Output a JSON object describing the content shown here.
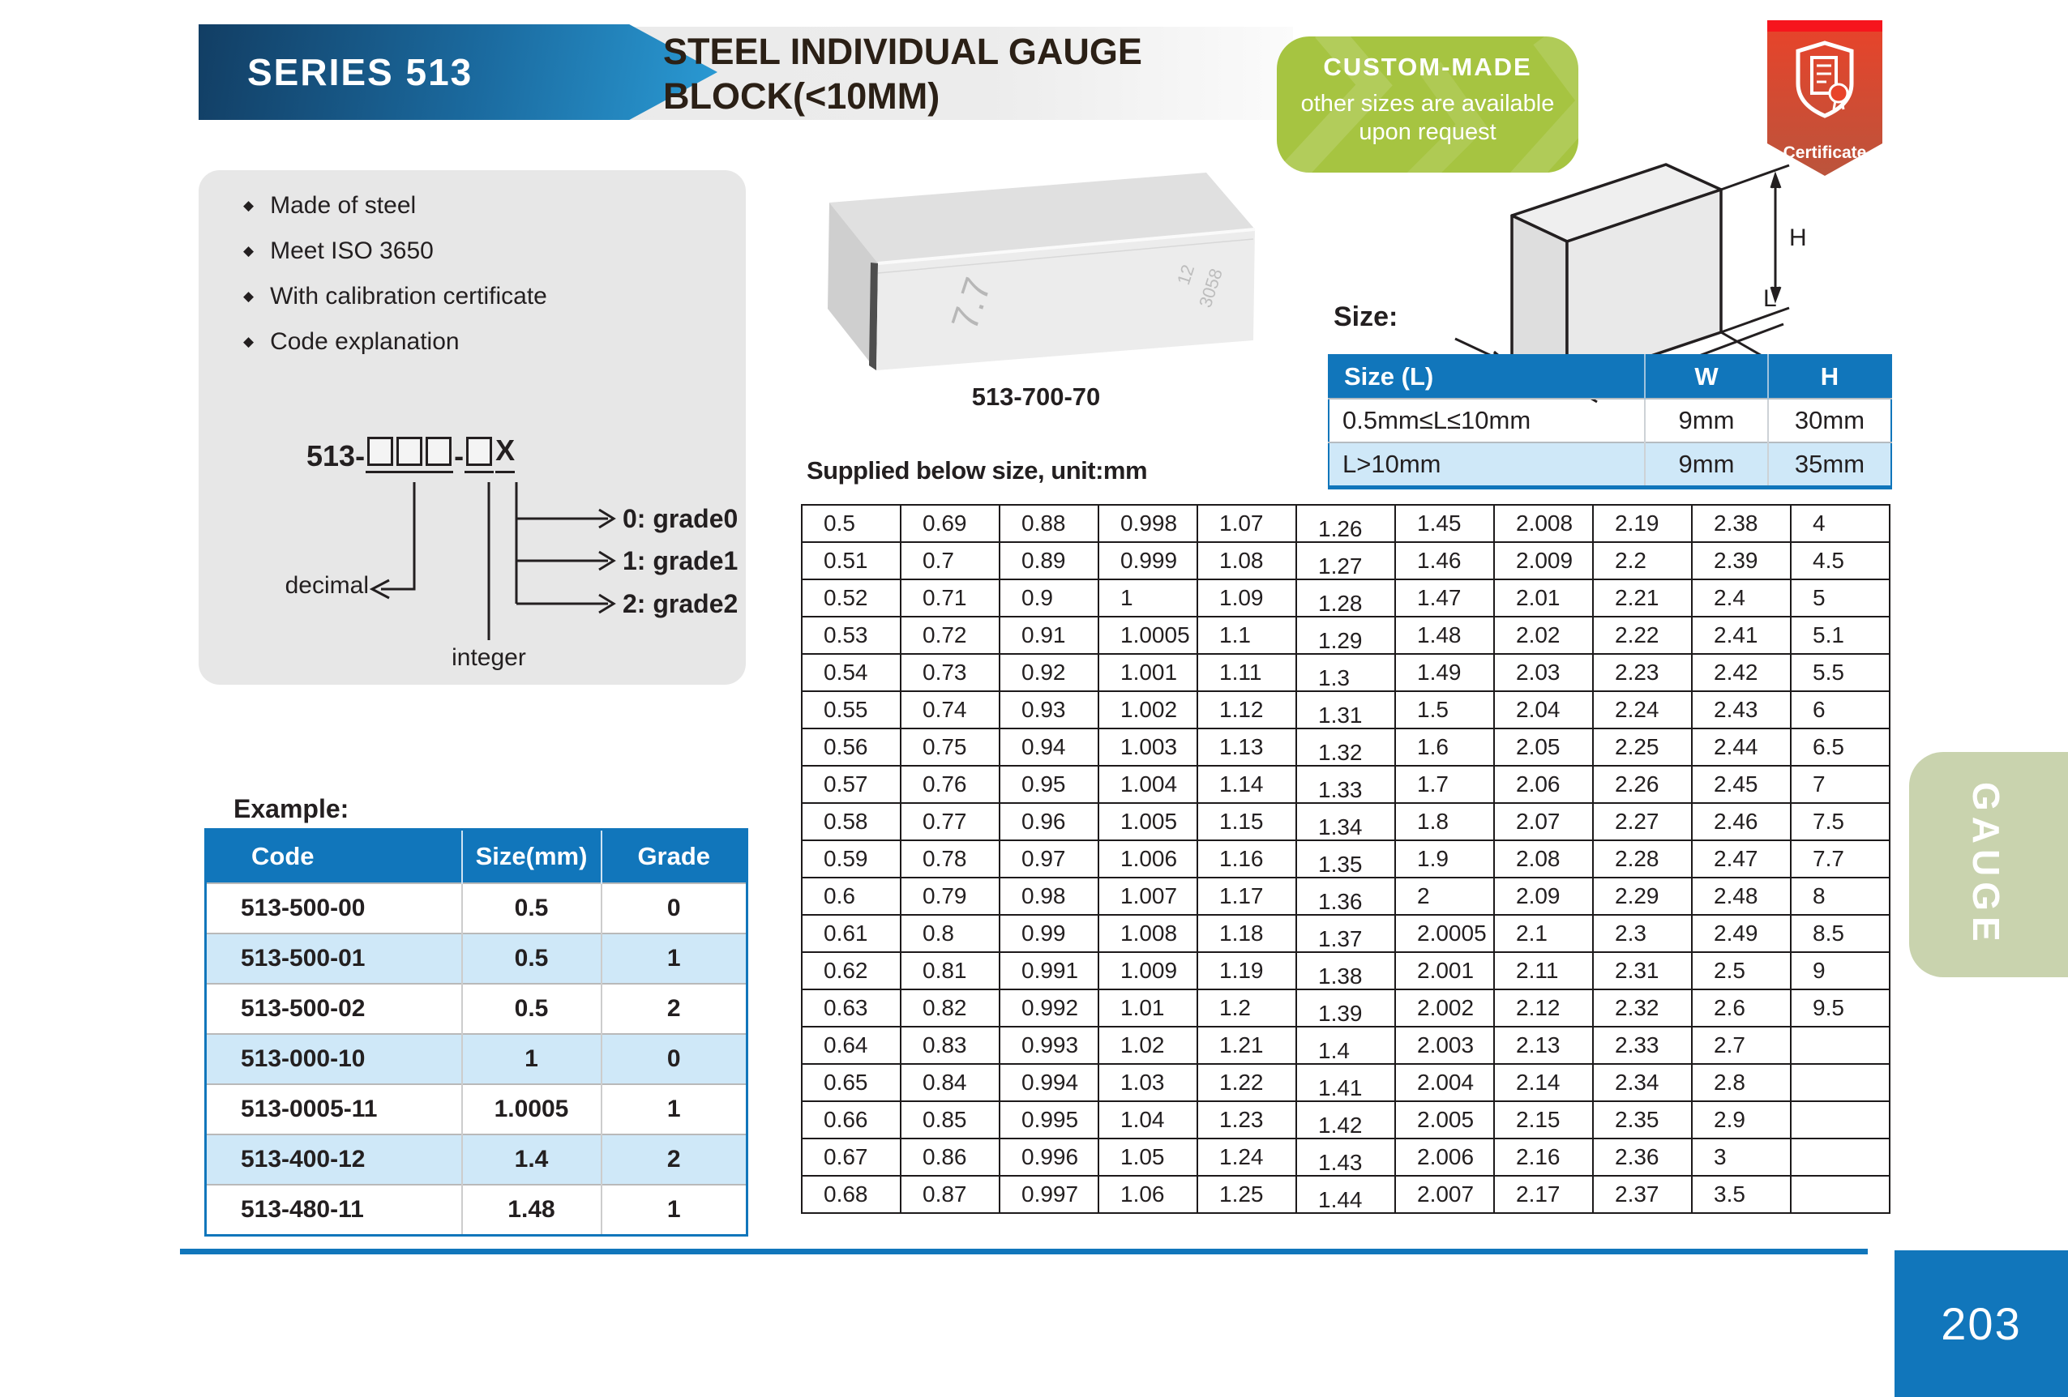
{
  "header": {
    "series": "SERIES 513",
    "title_line1": "STEEL INDIVIDUAL GAUGE",
    "title_line2": "BLOCK(<10MM)",
    "custom_made": {
      "title": "CUSTOM-MADE",
      "line1": "other sizes are available",
      "line2": "upon request"
    },
    "certificate_label": "Certificate"
  },
  "features": [
    "Made of steel",
    "Meet ISO 3650",
    "With calibration certificate",
    "Code explanation"
  ],
  "code_diagram": {
    "prefix": "513-",
    "separator": "-",
    "suffix": "X",
    "decimal_label": "decimal",
    "integer_label": "integer",
    "grades": [
      "0: grade0",
      "1: grade1",
      "2: grade2"
    ]
  },
  "product": {
    "caption": "513-700-70",
    "engraving_main": "7.7",
    "engraving_side1": "12",
    "engraving_side2": "3058"
  },
  "size_section": {
    "label": "Size:",
    "dim_labels": {
      "w": "W",
      "l": "L",
      "h": "H"
    },
    "table": {
      "headers": [
        "Size (L)",
        "W",
        "H"
      ],
      "rows": [
        [
          "0.5mm≤L≤10mm",
          "9mm",
          "30mm"
        ],
        [
          "L>10mm",
          "9mm",
          "35mm"
        ]
      ]
    }
  },
  "supplied_title": "Supplied below size, unit:mm",
  "supplied_table": {
    "rows": [
      [
        "0.5",
        "0.69",
        "0.88",
        "0.998",
        "1.07",
        "1.26",
        "1.45",
        "2.008",
        "2.19",
        "2.38",
        "4"
      ],
      [
        "0.51",
        "0.7",
        "0.89",
        "0.999",
        "1.08",
        "1.27",
        "1.46",
        "2.009",
        "2.2",
        "2.39",
        "4.5"
      ],
      [
        "0.52",
        "0.71",
        "0.9",
        "1",
        "1.09",
        "1.28",
        "1.47",
        "2.01",
        "2.21",
        "2.4",
        "5"
      ],
      [
        "0.53",
        "0.72",
        "0.91",
        "1.0005",
        "1.1",
        "1.29",
        "1.48",
        "2.02",
        "2.22",
        "2.41",
        "5.1"
      ],
      [
        "0.54",
        "0.73",
        "0.92",
        "1.001",
        "1.11",
        "1.3",
        "1.49",
        "2.03",
        "2.23",
        "2.42",
        "5.5"
      ],
      [
        "0.55",
        "0.74",
        "0.93",
        "1.002",
        "1.12",
        "1.31",
        "1.5",
        "2.04",
        "2.24",
        "2.43",
        "6"
      ],
      [
        "0.56",
        "0.75",
        "0.94",
        "1.003",
        "1.13",
        "1.32",
        "1.6",
        "2.05",
        "2.25",
        "2.44",
        "6.5"
      ],
      [
        "0.57",
        "0.76",
        "0.95",
        "1.004",
        "1.14",
        "1.33",
        "1.7",
        "2.06",
        "2.26",
        "2.45",
        "7"
      ],
      [
        "0.58",
        "0.77",
        "0.96",
        "1.005",
        "1.15",
        "1.34",
        "1.8",
        "2.07",
        "2.27",
        "2.46",
        "7.5"
      ],
      [
        "0.59",
        "0.78",
        "0.97",
        "1.006",
        "1.16",
        "1.35",
        "1.9",
        "2.08",
        "2.28",
        "2.47",
        "7.7"
      ],
      [
        "0.6",
        "0.79",
        "0.98",
        "1.007",
        "1.17",
        "1.36",
        "2",
        "2.09",
        "2.29",
        "2.48",
        "8"
      ],
      [
        "0.61",
        "0.8",
        "0.99",
        "1.008",
        "1.18",
        "1.37",
        "2.0005",
        "2.1",
        "2.3",
        "2.49",
        "8.5"
      ],
      [
        "0.62",
        "0.81",
        "0.991",
        "1.009",
        "1.19",
        "1.38",
        "2.001",
        "2.11",
        "2.31",
        "2.5",
        "9"
      ],
      [
        "0.63",
        "0.82",
        "0.992",
        "1.01",
        "1.2",
        "1.39",
        "2.002",
        "2.12",
        "2.32",
        "2.6",
        "9.5"
      ],
      [
        "0.64",
        "0.83",
        "0.993",
        "1.02",
        "1.21",
        "1.4",
        "2.003",
        "2.13",
        "2.33",
        "2.7",
        ""
      ],
      [
        "0.65",
        "0.84",
        "0.994",
        "1.03",
        "1.22",
        "1.41",
        "2.004",
        "2.14",
        "2.34",
        "2.8",
        ""
      ],
      [
        "0.66",
        "0.85",
        "0.995",
        "1.04",
        "1.23",
        "1.42",
        "2.005",
        "2.15",
        "2.35",
        "2.9",
        ""
      ],
      [
        "0.67",
        "0.86",
        "0.996",
        "1.05",
        "1.24",
        "1.43",
        "2.006",
        "2.16",
        "2.36",
        "3",
        ""
      ],
      [
        "0.68",
        "0.87",
        "0.997",
        "1.06",
        "1.25",
        "1.44",
        "2.007",
        "2.17",
        "2.37",
        "3.5",
        ""
      ]
    ]
  },
  "example": {
    "label": "Example:",
    "headers": [
      "Code",
      "Size(mm)",
      "Grade"
    ],
    "rows": [
      [
        "513-500-00",
        "0.5",
        "0"
      ],
      [
        "513-500-01",
        "0.5",
        "1"
      ],
      [
        "513-500-02",
        "0.5",
        "2"
      ],
      [
        "513-000-10",
        "1",
        "0"
      ],
      [
        "513-0005-11",
        "1.0005",
        "1"
      ],
      [
        "513-400-12",
        "1.4",
        "2"
      ],
      [
        "513-480-11",
        "1.48",
        "1"
      ]
    ]
  },
  "side_tab_label": "GAUGE",
  "page_number": "203",
  "colors": {
    "accent_blue": "#1176bb",
    "light_blue_row": "#cfe8f8",
    "badge_green": "#a6c441",
    "tab_sage": "#c9d3ae",
    "certificate_red": "#e64a2e",
    "ink": "#231f20"
  }
}
